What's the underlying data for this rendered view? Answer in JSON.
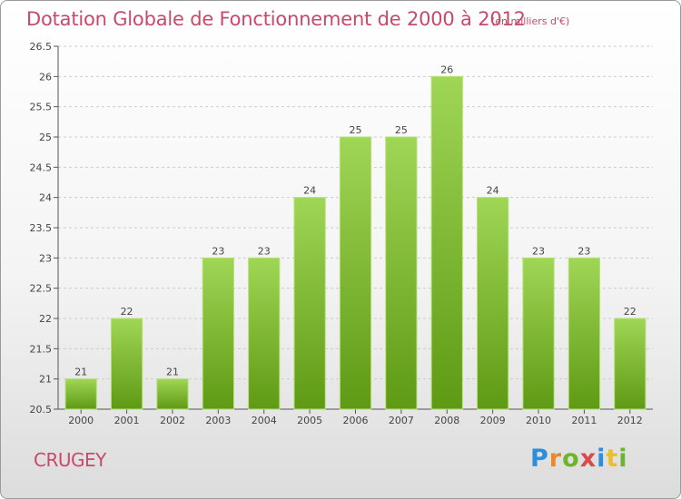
{
  "header": {
    "title": "Dotation Globale de Fonctionnement de 2000 à 2012",
    "unit": "(en milliers d'€)"
  },
  "footer": {
    "commune": "CRUGEY",
    "logo_text": "Proxiti"
  },
  "colors": {
    "title": "#c8496a",
    "bar_top": "#9fd656",
    "bar_bottom": "#5f9a14",
    "axis": "#555555",
    "grid": "#cccccc"
  },
  "chart_data": {
    "type": "bar",
    "title": "Dotation Globale de Fonctionnement de 2000 à 2012",
    "subtitle": "(en milliers d'€)",
    "xlabel": "",
    "ylabel": "",
    "categories": [
      "2000",
      "2001",
      "2002",
      "2003",
      "2004",
      "2005",
      "2006",
      "2007",
      "2008",
      "2009",
      "2010",
      "2011",
      "2012"
    ],
    "values": [
      21,
      22,
      21,
      23,
      23,
      24,
      25,
      25,
      26,
      24,
      23,
      23,
      22
    ],
    "ylim": [
      20.5,
      26.5
    ],
    "yticks": [
      "20.5",
      "21",
      "21.5",
      "22",
      "22.5",
      "23",
      "23.5",
      "24",
      "24.5",
      "25",
      "25.5",
      "26",
      "26.5"
    ],
    "grid": "horizontal dashed",
    "data_labels": true
  }
}
